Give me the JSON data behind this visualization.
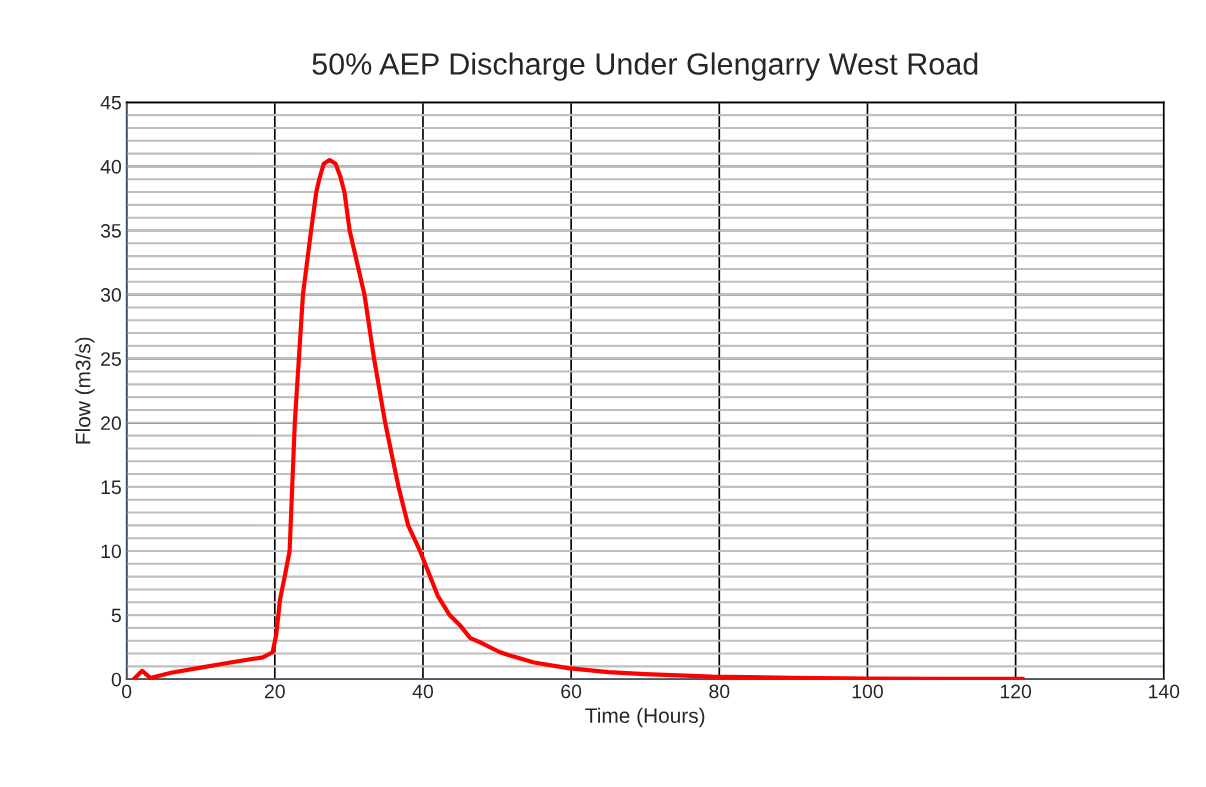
{
  "chart_data": {
    "type": "line",
    "title": "50% AEP Discharge Under Glengarry West Road",
    "xlabel": "Time (Hours)",
    "ylabel": "Flow (m3/s)",
    "xlim": [
      0,
      140
    ],
    "xticks": [
      0,
      20,
      40,
      60,
      80,
      100,
      120,
      140
    ],
    "ylim": [
      0,
      45
    ],
    "yticks": [
      0,
      5,
      10,
      15,
      20,
      25,
      30,
      35,
      40,
      45
    ],
    "grid": true,
    "marker": "none",
    "line_style": "solid",
    "series": [
      {
        "color": "#ff0000",
        "x": [
          0.95,
          2.1,
          3.2,
          6,
          10,
          14,
          18.4,
          19.7,
          20.2,
          20.7,
          21.4,
          22.0,
          22.7,
          23.8,
          24.9,
          25.6,
          26.0,
          26.6,
          27.4,
          28.2,
          28.8,
          29.4,
          30.1,
          32.1,
          33.4,
          34.9,
          36.7,
          38,
          39.6,
          42,
          43.6,
          45,
          46.4,
          48,
          50.4,
          52,
          55,
          59.6,
          65,
          70,
          79,
          90,
          100,
          110,
          121
        ],
        "values": [
          0,
          0.65,
          0.1,
          0.5,
          0.9,
          1.3,
          1.7,
          2.1,
          3.5,
          6.2,
          8.2,
          10,
          20,
          30,
          35,
          38,
          39,
          40.2,
          40.5,
          40.2,
          39.3,
          38,
          35,
          30,
          25,
          20,
          15,
          12,
          10,
          6.5,
          5,
          4.2,
          3.2,
          2.8,
          2.1,
          1.8,
          1.3,
          0.86,
          0.55,
          0.4,
          0.2,
          0.1,
          0.05,
          0.03,
          0.02
        ]
      }
    ]
  }
}
